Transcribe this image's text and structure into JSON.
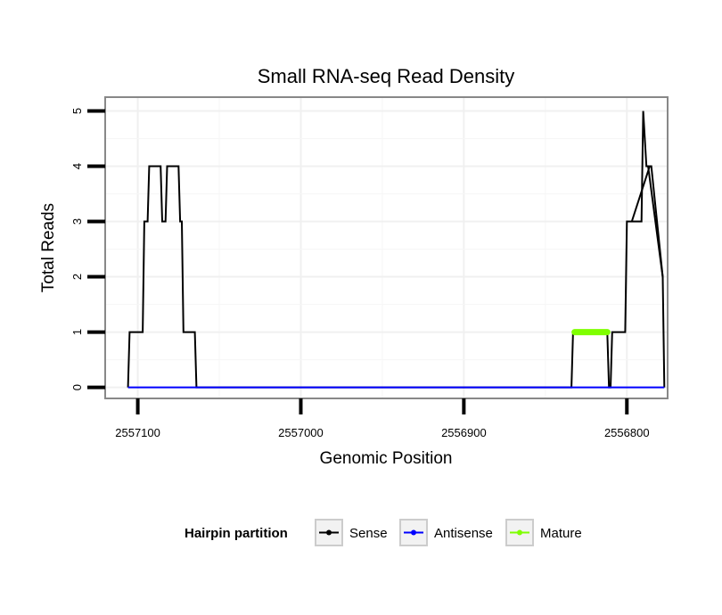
{
  "chart_data": {
    "type": "line",
    "title": "Small RNA-seq Read Density",
    "xlabel": "Genomic Position",
    "ylabel": "Total Reads",
    "xlim": [
      2557120,
      2556775
    ],
    "ylim": [
      -0.2,
      5.25
    ],
    "x_reversed": true,
    "x_ticks": [
      2557100,
      2557000,
      2556900,
      2556800
    ],
    "x_tick_labels": [
      "2557100",
      "2557000",
      "2556900",
      "2556800"
    ],
    "y_ticks": [
      0,
      1,
      2,
      3,
      4,
      5
    ],
    "y_tick_labels": [
      "0",
      "1",
      "2",
      "3",
      "4",
      "5"
    ],
    "grid": true,
    "legend": {
      "title": "Hairpin partition",
      "position": "bottom",
      "entries": [
        {
          "label": "Sense",
          "color": "#000000"
        },
        {
          "label": "Antisense",
          "color": "#0000ff"
        },
        {
          "label": "Mature",
          "color": "#7fff00"
        }
      ]
    },
    "series": [
      {
        "name": "Sense",
        "color": "#000000",
        "x": [
          2557106,
          2557105,
          2557097,
          2557096,
          2557094,
          2557093,
          2557086,
          2557085,
          2557083,
          2557082,
          2557075,
          2557074,
          2557073,
          2557072,
          2557065,
          2557064,
          2557063,
          2557062,
          2556834,
          2556833,
          2556812,
          2556811,
          2556810,
          2556809,
          2556801,
          2556800,
          2556791,
          2556790,
          2556788,
          2556787,
          2556778,
          2556777
        ],
        "y": [
          0,
          1,
          1,
          3,
          3,
          4,
          4,
          3,
          3,
          4,
          4,
          3,
          3,
          1,
          1,
          0,
          0,
          0,
          0,
          1,
          1,
          0,
          0,
          1,
          1,
          3,
          3,
          5,
          4,
          4,
          2,
          0
        ]
      },
      {
        "name": "Sense",
        "color": "#000000",
        "x": [
          2556798,
          2556797,
          2556786,
          2556785,
          2556778
        ],
        "y": [
          3,
          3,
          4,
          4,
          2
        ]
      },
      {
        "name": "Antisense",
        "color": "#0000ff",
        "x": [
          2557106,
          2557062,
          2556834,
          2556777
        ],
        "y": [
          0,
          0,
          0,
          0
        ]
      },
      {
        "name": "Mature",
        "color": "#7fff00",
        "x": [
          2556832,
          2556812
        ],
        "y": [
          1,
          1
        ]
      }
    ]
  }
}
